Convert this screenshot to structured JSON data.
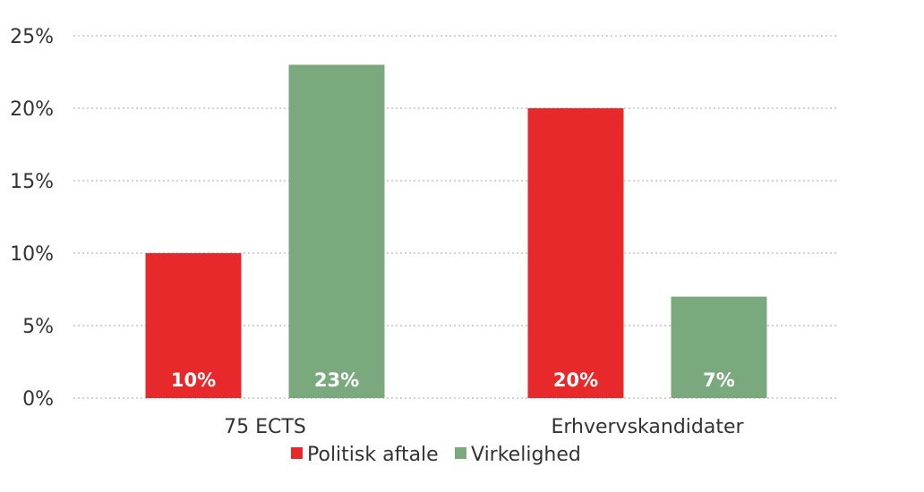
{
  "chart_data": {
    "type": "bar",
    "categories": [
      "75 ECTS",
      "Erhvervskandidater"
    ],
    "series": [
      {
        "name": "Politisk aftale",
        "values": [
          10,
          20
        ],
        "labels": [
          "10%",
          "20%"
        ],
        "color": "#e8292b"
      },
      {
        "name": "Virkelighed",
        "values": [
          23,
          7
        ],
        "labels": [
          "23%",
          "7%"
        ],
        "color": "#7aa97d"
      }
    ],
    "y_ticks": [
      {
        "value": 0,
        "label": "0%"
      },
      {
        "value": 5,
        "label": "5%"
      },
      {
        "value": 10,
        "label": "10%"
      },
      {
        "value": 15,
        "label": "15%"
      },
      {
        "value": 20,
        "label": "20%"
      },
      {
        "value": 25,
        "label": "25%"
      }
    ],
    "ylim": [
      0,
      25
    ],
    "grid": true,
    "legend": "bottom"
  }
}
